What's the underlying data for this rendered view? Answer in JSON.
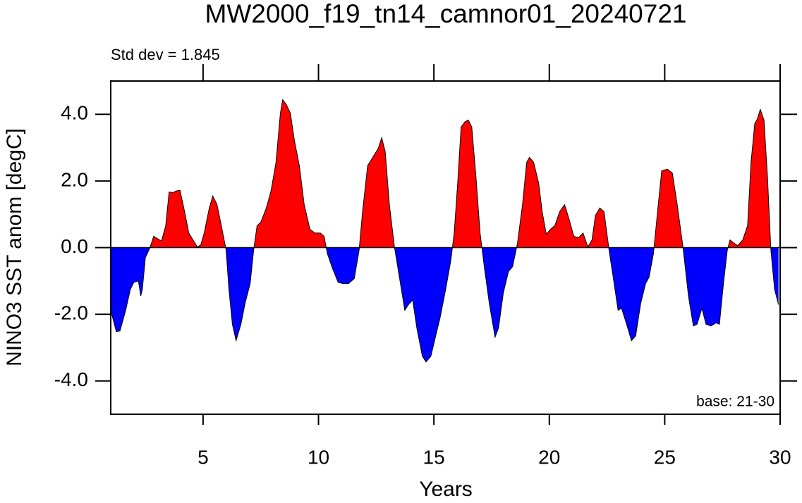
{
  "chart_data": {
    "type": "area",
    "title": "MW2000_f19_tn14_camnor01_20240721",
    "subtitle": "Std dev = 1.845",
    "annotation": "base: 21-30",
    "xlabel": "Years",
    "ylabel": "NINO3 SST anom [degC]",
    "xlim": [
      1,
      30
    ],
    "ylim": [
      -5,
      5
    ],
    "xticks": [
      5,
      10,
      15,
      20,
      25,
      30
    ],
    "yticks": [
      {
        "value": -4,
        "label": "-4.0"
      },
      {
        "value": -2,
        "label": "-2.0"
      },
      {
        "value": 0,
        "label": "0.0"
      },
      {
        "value": 2,
        "label": "2.0"
      },
      {
        "value": 4,
        "label": "4.0"
      }
    ],
    "positive_color": "#ff0000",
    "negative_color": "#0000ff",
    "x": [
      1.0,
      1.24,
      1.4,
      1.64,
      1.85,
      2.0,
      2.2,
      2.3,
      2.37,
      2.5,
      2.7,
      2.86,
      3.07,
      3.2,
      3.38,
      3.53,
      3.68,
      3.84,
      4.0,
      4.2,
      4.38,
      4.6,
      4.75,
      4.9,
      5.05,
      5.27,
      5.42,
      5.6,
      5.79,
      6.0,
      6.12,
      6.27,
      6.43,
      6.64,
      6.82,
      7.04,
      7.19,
      7.34,
      7.5,
      7.74,
      7.95,
      8.16,
      8.35,
      8.45,
      8.6,
      8.78,
      8.96,
      9.17,
      9.38,
      9.63,
      9.84,
      10.08,
      10.24,
      10.39,
      10.6,
      10.85,
      11.06,
      11.3,
      11.55,
      11.76,
      11.91,
      12.13,
      12.37,
      12.59,
      12.74,
      12.89,
      13.07,
      13.29,
      13.44,
      13.74,
      13.9,
      14.08,
      14.26,
      14.5,
      14.66,
      14.87,
      15.05,
      15.27,
      15.51,
      15.73,
      15.88,
      16.03,
      16.18,
      16.34,
      16.49,
      16.64,
      16.82,
      17.0,
      17.19,
      17.4,
      17.65,
      17.8,
      18.01,
      18.23,
      18.41,
      18.62,
      18.84,
      19.02,
      19.14,
      19.32,
      19.54,
      19.69,
      19.87,
      20.05,
      20.24,
      20.45,
      20.66,
      20.85,
      21.06,
      21.27,
      21.46,
      21.67,
      21.85,
      22.0,
      22.19,
      22.37,
      22.59,
      22.8,
      22.98,
      23.13,
      23.35,
      23.56,
      23.74,
      23.96,
      24.17,
      24.32,
      24.51,
      24.69,
      24.87,
      25.12,
      25.33,
      25.54,
      25.79,
      26.03,
      26.24,
      26.4,
      26.61,
      26.79,
      27.0,
      27.22,
      27.37,
      27.55,
      27.71,
      27.83,
      28.01,
      28.16,
      28.38,
      28.59,
      28.74,
      28.9,
      29.02,
      29.14,
      29.3,
      29.45,
      29.6,
      29.76,
      29.93
    ],
    "series": [
      {
        "values": [
          -1.88,
          -2.52,
          -2.5,
          -1.9,
          -1.25,
          -1.04,
          -1.0,
          -1.45,
          -1.25,
          -0.3,
          0.0,
          0.34,
          0.25,
          0.2,
          0.65,
          1.67,
          1.65,
          1.7,
          1.72,
          1.08,
          0.44,
          0.19,
          0.02,
          0.08,
          0.44,
          1.19,
          1.55,
          1.3,
          0.66,
          -0.08,
          -1.25,
          -2.3,
          -2.79,
          -2.3,
          -1.67,
          -1.08,
          -0.08,
          0.66,
          0.76,
          1.19,
          1.72,
          2.56,
          4.04,
          4.44,
          4.3,
          4.04,
          3.2,
          2.46,
          1.29,
          0.55,
          0.44,
          0.44,
          0.34,
          -0.19,
          -0.61,
          -1.04,
          -1.08,
          -1.08,
          -0.93,
          -0.08,
          1.08,
          2.46,
          2.73,
          2.98,
          3.3,
          2.88,
          1.29,
          0.02,
          -0.61,
          -1.88,
          -1.71,
          -1.57,
          -2.41,
          -3.26,
          -3.43,
          -3.26,
          -2.73,
          -2.1,
          -1.25,
          -0.4,
          0.44,
          1.93,
          3.62,
          3.77,
          3.83,
          3.62,
          2.14,
          0.44,
          -0.61,
          -1.67,
          -2.69,
          -2.41,
          -1.35,
          -0.72,
          -0.57,
          0.13,
          1.29,
          2.56,
          2.71,
          2.56,
          1.93,
          1.08,
          0.4,
          0.55,
          0.66,
          1.08,
          1.29,
          0.87,
          0.34,
          0.3,
          0.44,
          0.02,
          0.23,
          0.97,
          1.19,
          1.08,
          -0.08,
          -1.04,
          -1.88,
          -1.82,
          -2.3,
          -2.79,
          -2.65,
          -1.67,
          -1.08,
          -0.89,
          -0.19,
          1.08,
          2.31,
          2.35,
          2.24,
          1.29,
          0.02,
          -1.46,
          -2.35,
          -2.3,
          -1.82,
          -2.3,
          -2.35,
          -2.26,
          -2.3,
          -1.04,
          -0.08,
          0.23,
          0.13,
          0.06,
          0.23,
          0.66,
          2.56,
          3.72,
          3.87,
          4.15,
          3.83,
          2.14,
          -0.08,
          -1.25,
          -1.71
        ]
      }
    ]
  }
}
